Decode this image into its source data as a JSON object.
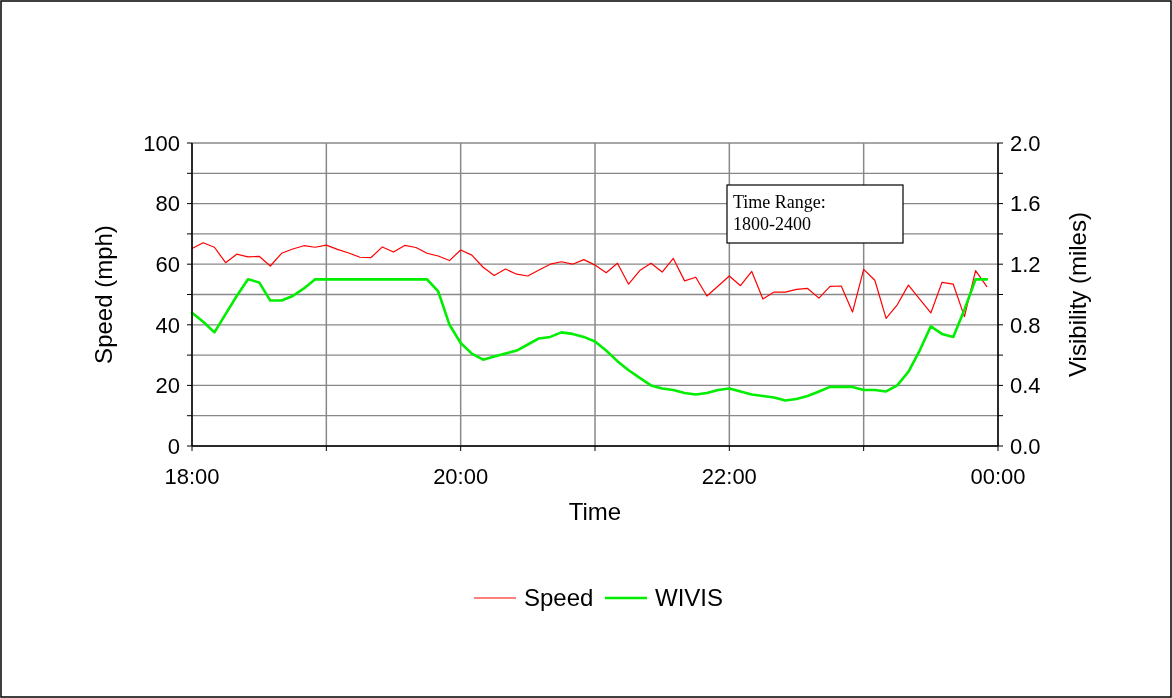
{
  "chart_data": {
    "type": "line",
    "xlabel": "Time",
    "ylabel": "Speed (mph)",
    "y2label": "Visibility (miles)",
    "x": [
      18,
      18.083,
      18.167,
      18.25,
      18.333,
      18.417,
      18.5,
      18.583,
      18.667,
      18.75,
      18.833,
      18.917,
      19,
      19.083,
      19.167,
      19.25,
      19.333,
      19.417,
      19.5,
      19.583,
      19.667,
      19.75,
      19.833,
      19.917,
      20,
      20.083,
      20.167,
      20.25,
      20.333,
      20.417,
      20.5,
      20.583,
      20.667,
      20.75,
      20.833,
      20.917,
      21,
      21.083,
      21.167,
      21.25,
      21.333,
      21.417,
      21.5,
      21.583,
      21.667,
      21.75,
      21.833,
      21.917,
      22,
      22.083,
      22.167,
      22.25,
      22.333,
      22.417,
      22.5,
      22.583,
      22.667,
      22.75,
      22.833,
      22.917,
      23,
      23.083,
      23.167,
      23.25,
      23.333,
      23.417,
      23.5,
      23.583,
      23.667,
      23.75,
      23.833,
      23.917
    ],
    "series": [
      {
        "name": "Speed",
        "color": "#ff0000",
        "values": [
          65.2,
          67.1,
          65.6,
          60.5,
          63.3,
          62.4,
          62.6,
          59.4,
          63.6,
          65.0,
          66.1,
          65.6,
          66.3,
          64.9,
          63.7,
          62.3,
          62.2,
          65.7,
          64.0,
          66.2,
          65.5,
          63.6,
          62.7,
          61.2,
          64.7,
          63.0,
          59.0,
          56.3,
          58.4,
          56.7,
          56.1,
          58.1,
          60.0,
          60.8,
          60.0,
          61.5,
          59.7,
          57.2,
          60.3,
          53.4,
          57.9,
          60.3,
          57.4,
          61.9,
          54.5,
          55.7,
          49.5,
          52.8,
          56.1,
          52.9,
          57.6,
          48.5,
          50.8,
          50.8,
          51.7,
          52.0,
          48.8,
          52.7,
          52.8,
          44.2,
          58.3,
          54.7,
          42.1,
          46.6,
          53.1,
          48.5,
          43.9,
          54.0,
          53.4,
          42.7,
          57.9,
          52.6
        ]
      },
      {
        "name": "WIVIS",
        "color": "#00ee00",
        "axis": "y2",
        "values": [
          0.88,
          0.82,
          0.75,
          0.87,
          0.99,
          1.1,
          1.08,
          0.96,
          0.96,
          0.99,
          1.04,
          1.1,
          1.1,
          1.1,
          1.1,
          1.1,
          1.1,
          1.1,
          1.1,
          1.1,
          1.1,
          1.1,
          1.02,
          0.8,
          0.68,
          0.61,
          0.57,
          0.59,
          0.61,
          0.63,
          0.67,
          0.71,
          0.72,
          0.75,
          0.74,
          0.72,
          0.69,
          0.63,
          0.56,
          0.5,
          0.45,
          0.4,
          0.38,
          0.37,
          0.35,
          0.34,
          0.35,
          0.37,
          0.38,
          0.36,
          0.34,
          0.33,
          0.32,
          0.3,
          0.31,
          0.33,
          0.36,
          0.39,
          0.39,
          0.39,
          0.37,
          0.37,
          0.36,
          0.4,
          0.49,
          0.63,
          0.79,
          0.74,
          0.72,
          0.9,
          1.1,
          1.1
        ]
      }
    ],
    "xlim": [
      18,
      24
    ],
    "xticks": [
      {
        "value": 18,
        "label": "18:00"
      },
      {
        "value": 19,
        "label": null
      },
      {
        "value": 20,
        "label": "20:00"
      },
      {
        "value": 21,
        "label": null
      },
      {
        "value": 22,
        "label": "22:00"
      },
      {
        "value": 23,
        "label": null
      },
      {
        "value": 24,
        "label": "00:00"
      }
    ],
    "ylim": [
      0,
      100
    ],
    "yticks": [
      0,
      {
        "value": 10,
        "label": null
      },
      20,
      {
        "value": 30,
        "label": null
      },
      40,
      {
        "value": 50,
        "label": null
      },
      60,
      {
        "value": 70,
        "label": null
      },
      80,
      {
        "value": 90,
        "label": null
      },
      100
    ],
    "y2lim": [
      0,
      2
    ],
    "y2ticks": [
      {
        "value": 0,
        "label": "0.0"
      },
      {
        "value": 0.2,
        "label": null
      },
      {
        "value": 0.4,
        "label": "0.4"
      },
      {
        "value": 0.6,
        "label": null
      },
      {
        "value": 0.8,
        "label": "0.8"
      },
      {
        "value": 1.0,
        "label": null
      },
      {
        "value": 1.2,
        "label": "1.2"
      },
      {
        "value": 1.4,
        "label": null
      },
      {
        "value": 1.6,
        "label": "1.6"
      },
      {
        "value": 1.8,
        "label": null
      },
      {
        "value": 2.0,
        "label": "2.0"
      }
    ],
    "grid": true,
    "legend": "bottom",
    "marker": "none",
    "line_style": "solid",
    "annotations": [
      "Time Range:\n1800-2400"
    ]
  }
}
